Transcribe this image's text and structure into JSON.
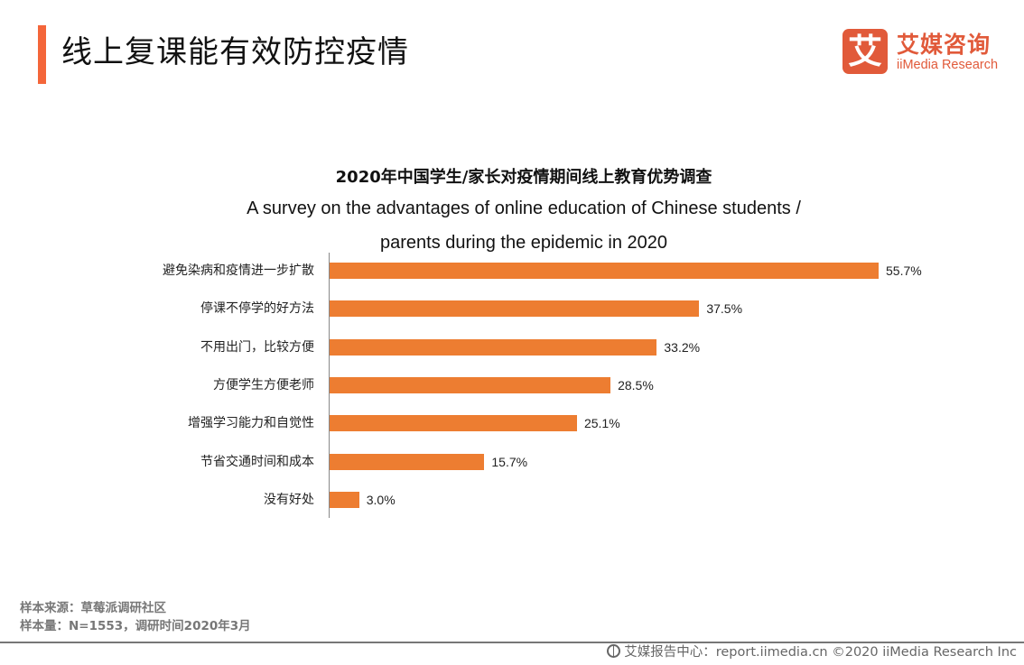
{
  "header": {
    "title": "线上复课能有效防控疫情",
    "accent_color": "#f4663a"
  },
  "logo": {
    "glyph": "艾",
    "name_cn": "艾媒咨询",
    "name_en": "iiMedia Research",
    "color": "#e15a3a"
  },
  "chart_data": {
    "type": "bar",
    "orientation": "horizontal",
    "title": "2020年中国学生/家长对疫情期间线上教育优势调查",
    "subtitle_line1": "A survey on the advantages  of online education of Chinese students /",
    "subtitle_line2": "parents during the epidemic  in 2020",
    "categories": [
      "避免染病和疫情进一步扩散",
      "停课不停学的好方法",
      "不用出门，比较方便",
      "方便学生方便老师",
      "增强学习能力和自觉性",
      "节省交通时间和成本",
      "没有好处"
    ],
    "values": [
      55.7,
      37.5,
      33.2,
      28.5,
      25.1,
      15.7,
      3.0
    ],
    "value_labels": [
      "55.7%",
      "37.5%",
      "33.2%",
      "28.5%",
      "25.1%",
      "15.7%",
      "3.0%"
    ],
    "unit": "%",
    "bar_color": "#ed7d31",
    "xlabel": "",
    "ylabel": "",
    "grid": false,
    "legend": null
  },
  "source": {
    "line1": "样本来源：草莓派调研社区",
    "line2": "样本量：N=1553，调研时间2020年3月"
  },
  "footer": {
    "text": "艾媒报告中心：report.iimedia.cn  ©2020  iiMedia Research  Inc"
  }
}
